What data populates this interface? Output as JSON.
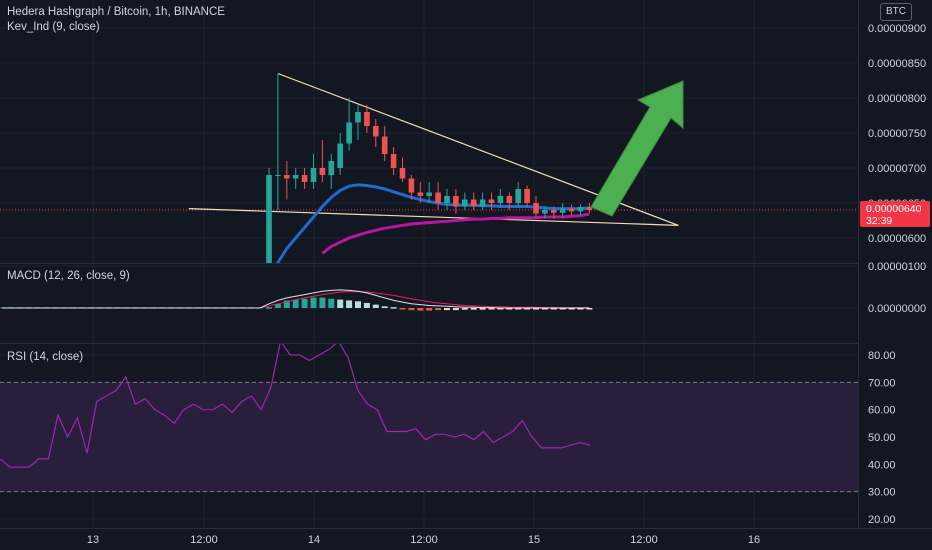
{
  "header": {
    "title": "Hedera Hashgraph / Bitcoin, 1h, BINANCE",
    "indicator": "Kev_Ind  (9, close)",
    "currency_badge": "BTC"
  },
  "price_tag": {
    "price": "0.00000640",
    "countdown": "32:39",
    "color": "#f23645"
  },
  "macd_legend": "MACD (12, 26, close, 9)",
  "rsi_legend": "RSI (14, close)",
  "colors": {
    "background": "#131722",
    "up": "#26a69a",
    "down": "#ef5350",
    "ema_fast": "#1e6ccf",
    "ema_slow": "#b5179e",
    "trendline": "#f5deb3",
    "arrow": "#4caf50",
    "rsi_line": "#9c27b0",
    "rsi_band": "#2a1e3d"
  },
  "chart_data": [
    {
      "type": "candlestick",
      "title": "Hedera Hashgraph / Bitcoin, 1h, BINANCE",
      "ylim": [
        5.75e-06,
        9.2e-06
      ],
      "y_ticks": [
        "0.00000900",
        "0.00000850",
        "0.00000800",
        "0.00000750",
        "0.00000700",
        "0.00000650",
        "0.00000600"
      ],
      "x_ticks": [
        "13",
        "12:00",
        "14",
        "12:00",
        "15",
        "12:00",
        "16"
      ],
      "current_price": 6.4e-06,
      "candles": [
        {
          "i": 0,
          "o": 5.6e-06,
          "h": 7e-06,
          "l": 5.6e-06,
          "c": 6.9e-06
        },
        {
          "i": 1,
          "o": 6.9e-06,
          "h": 8.35e-06,
          "l": 6.4e-06,
          "c": 6.9e-06
        },
        {
          "i": 2,
          "o": 6.9e-06,
          "h": 7.1e-06,
          "l": 6.55e-06,
          "c": 6.85e-06
        },
        {
          "i": 3,
          "o": 6.85e-06,
          "h": 7e-06,
          "l": 6.7e-06,
          "c": 6.9e-06
        },
        {
          "i": 4,
          "o": 6.9e-06,
          "h": 7e-06,
          "l": 6.7e-06,
          "c": 6.8e-06
        },
        {
          "i": 5,
          "o": 6.8e-06,
          "h": 7.2e-06,
          "l": 6.7e-06,
          "c": 7e-06
        },
        {
          "i": 6,
          "o": 7e-06,
          "h": 7.4e-06,
          "l": 6.8e-06,
          "c": 6.9e-06
        },
        {
          "i": 7,
          "o": 6.9e-06,
          "h": 7.2e-06,
          "l": 6.7e-06,
          "c": 7.1e-06
        },
        {
          "i": 8,
          "o": 7e-06,
          "h": 7.5e-06,
          "l": 6.9e-06,
          "c": 7.35e-06
        },
        {
          "i": 9,
          "o": 7.35e-06,
          "h": 8e-06,
          "l": 7.25e-06,
          "c": 7.65e-06
        },
        {
          "i": 10,
          "o": 7.65e-06,
          "h": 7.9e-06,
          "l": 7.4e-06,
          "c": 7.8e-06
        },
        {
          "i": 11,
          "o": 7.8e-06,
          "h": 7.9e-06,
          "l": 7.5e-06,
          "c": 7.6e-06
        },
        {
          "i": 12,
          "o": 7.6e-06,
          "h": 7.7e-06,
          "l": 7.3e-06,
          "c": 7.45e-06
        },
        {
          "i": 13,
          "o": 7.45e-06,
          "h": 7.6e-06,
          "l": 7.1e-06,
          "c": 7.2e-06
        },
        {
          "i": 14,
          "o": 7.2e-06,
          "h": 7.3e-06,
          "l": 6.9e-06,
          "c": 7e-06
        },
        {
          "i": 15,
          "o": 7e-06,
          "h": 7.15e-06,
          "l": 6.8e-06,
          "c": 6.85e-06
        },
        {
          "i": 16,
          "o": 6.85e-06,
          "h": 6.9e-06,
          "l": 6.55e-06,
          "c": 6.65e-06
        },
        {
          "i": 17,
          "o": 6.65e-06,
          "h": 6.8e-06,
          "l": 6.5e-06,
          "c": 6.6e-06
        },
        {
          "i": 18,
          "o": 6.6e-06,
          "h": 6.8e-06,
          "l": 6.5e-06,
          "c": 6.65e-06
        },
        {
          "i": 19,
          "o": 6.65e-06,
          "h": 6.8e-06,
          "l": 6.4e-06,
          "c": 6.5e-06
        },
        {
          "i": 20,
          "o": 6.5e-06,
          "h": 6.7e-06,
          "l": 6.4e-06,
          "c": 6.6e-06
        },
        {
          "i": 21,
          "o": 6.6e-06,
          "h": 6.7e-06,
          "l": 6.35e-06,
          "c": 6.45e-06
        },
        {
          "i": 22,
          "o": 6.45e-06,
          "h": 6.65e-06,
          "l": 6.4e-06,
          "c": 6.55e-06
        },
        {
          "i": 23,
          "o": 6.55e-06,
          "h": 6.65e-06,
          "l": 6.4e-06,
          "c": 6.45e-06
        },
        {
          "i": 24,
          "o": 6.45e-06,
          "h": 6.65e-06,
          "l": 6.4e-06,
          "c": 6.55e-06
        },
        {
          "i": 25,
          "o": 6.55e-06,
          "h": 6.65e-06,
          "l": 6.4e-06,
          "c": 6.5e-06
        },
        {
          "i": 26,
          "o": 6.5e-06,
          "h": 6.7e-06,
          "l": 6.45e-06,
          "c": 6.6e-06
        },
        {
          "i": 27,
          "o": 6.6e-06,
          "h": 6.65e-06,
          "l": 6.4e-06,
          "c": 6.5e-06
        },
        {
          "i": 28,
          "o": 6.5e-06,
          "h": 6.8e-06,
          "l": 6.45e-06,
          "c": 6.7e-06
        },
        {
          "i": 29,
          "o": 6.7e-06,
          "h": 6.75e-06,
          "l": 6.45e-06,
          "c": 6.5e-06
        },
        {
          "i": 30,
          "o": 6.5e-06,
          "h": 6.6e-06,
          "l": 6.3e-06,
          "c": 6.35e-06
        },
        {
          "i": 31,
          "o": 6.35e-06,
          "h": 6.45e-06,
          "l": 6.28e-06,
          "c": 6.4e-06
        },
        {
          "i": 32,
          "o": 6.4e-06,
          "h": 6.45e-06,
          "l": 6.28e-06,
          "c": 6.36e-06
        },
        {
          "i": 33,
          "o": 6.36e-06,
          "h": 6.5e-06,
          "l": 6.3e-06,
          "c": 6.42e-06
        },
        {
          "i": 34,
          "o": 6.42e-06,
          "h": 6.48e-06,
          "l": 6.32e-06,
          "c": 6.38e-06
        },
        {
          "i": 35,
          "o": 6.38e-06,
          "h": 6.48e-06,
          "l": 6.32e-06,
          "c": 6.44e-06
        },
        {
          "i": 36,
          "o": 6.44e-06,
          "h": 6.5e-06,
          "l": 6.36e-06,
          "c": 6.4e-06
        }
      ],
      "ema_fast": [
        5.4e-06,
        5.65e-06,
        5.85e-06,
        6e-06,
        6.15e-06,
        6.3e-06,
        6.45e-06,
        6.58e-06,
        6.68e-06,
        6.74e-06,
        6.76e-06,
        6.75e-06,
        6.73e-06,
        6.7e-06,
        6.66e-06,
        6.62e-06,
        6.58e-06,
        6.55e-06,
        6.52e-06,
        6.5e-06,
        6.48e-06,
        6.47e-06,
        6.47e-06,
        6.47e-06,
        6.46e-06,
        6.46e-06,
        6.45e-06,
        6.45e-06,
        6.45e-06,
        6.45e-06,
        6.44e-06,
        6.43e-06,
        6.42e-06,
        6.42e-06,
        6.42e-06,
        6.42e-06,
        6.43e-06
      ],
      "ema_slow": [
        null,
        null,
        null,
        null,
        null,
        null,
        5.78e-06,
        5.88e-06,
        5.94e-06,
        6e-06,
        6.04e-06,
        6.08e-06,
        6.11e-06,
        6.14e-06,
        6.16e-06,
        6.18e-06,
        6.2e-06,
        6.21e-06,
        6.22e-06,
        6.23e-06,
        6.24e-06,
        6.25e-06,
        6.26e-06,
        6.27e-06,
        6.27e-06,
        6.28e-06,
        6.28e-06,
        6.29e-06,
        6.29e-06,
        6.29e-06,
        6.29e-06,
        6.3e-06,
        6.3e-06,
        6.3e-06,
        6.31e-06,
        6.32e-06,
        6.34e-06
      ],
      "trendlines": [
        {
          "from": {
            "i": 1,
            "v": 8.35e-06
          },
          "to": {
            "i": 46,
            "v": 6.18e-06
          }
        },
        {
          "from": {
            "i": -9,
            "v": 6.42e-06
          },
          "to": {
            "i": 46,
            "v": 6.18e-06
          }
        }
      ]
    },
    {
      "type": "macd",
      "title": "MACD (12, 26, close, 9)",
      "ylim": [
        -3.5e-07,
        1.05e-06
      ],
      "y_ticks": [
        "0.00000100",
        "0.00000000"
      ],
      "hist": [
        2e-08,
        1e-07,
        1.8e-07,
        2e-07,
        2.2e-07,
        2.5e-07,
        2.5e-07,
        2.2e-07,
        2e-07,
        1.8e-07,
        1.6e-07,
        1.2e-07,
        8e-08,
        4e-08,
        2e-08,
        -2e-08,
        -5e-08,
        -6e-08,
        -6e-08,
        -5e-08,
        -5e-08,
        -5e-08,
        -4e-08,
        -4e-08,
        -4e-08,
        -3e-08,
        -3e-08,
        -3e-08,
        -2e-08,
        -3e-08,
        -3e-08,
        -3e-08,
        -2e-08,
        -2e-08,
        -2e-08,
        -2e-08,
        -1e-08
      ],
      "macd": [
        1e-07,
        1.8e-07,
        2.4e-07,
        2.8e-07,
        3.2e-07,
        3.6e-07,
        4e-07,
        4.2e-07,
        4.3e-07,
        4.2e-07,
        4e-07,
        3.6e-07,
        3e-07,
        2.4e-07,
        1.8e-07,
        1.4e-07,
        1e-07,
        8e-08,
        6e-08,
        5e-08,
        4e-08,
        3e-08,
        2e-08,
        2e-08,
        1e-08,
        1e-08,
        0.0,
        0.0,
        0.0,
        0.0,
        0.0,
        0.0,
        0.0,
        0.0,
        0.0,
        0.0,
        0.0
      ],
      "signal": [
        5e-08,
        1e-07,
        1.5e-07,
        2e-07,
        2.4e-07,
        2.8e-07,
        3.2e-07,
        3.5e-07,
        3.8e-07,
        3.9e-07,
        3.9e-07,
        3.8e-07,
        3.6e-07,
        3.3e-07,
        3e-07,
        2.6e-07,
        2.2e-07,
        1.8e-07,
        1.5e-07,
        1.2e-07,
        1e-07,
        8e-08,
        6e-08,
        5e-08,
        4e-08,
        3e-08,
        3e-08,
        2e-08,
        2e-08,
        2e-08,
        2e-08,
        1e-08,
        1e-08,
        1e-08,
        1e-08,
        1e-08,
        1e-08
      ]
    },
    {
      "type": "line",
      "title": "RSI (14, close)",
      "ylim": [
        17,
        85
      ],
      "y_ticks": [
        "80.00",
        "70.00",
        "60.00",
        "50.00",
        "40.00",
        "30.00",
        "20.00"
      ],
      "bands": [
        30,
        70
      ],
      "values": [
        42,
        39,
        39,
        39,
        42,
        42,
        58,
        50,
        57,
        44,
        63,
        65,
        67,
        72,
        62,
        64,
        60,
        58,
        55,
        60,
        62,
        60,
        60,
        62,
        59,
        63,
        65,
        60,
        68,
        85,
        80,
        80,
        78,
        80,
        82,
        85,
        79,
        67,
        62,
        60,
        52,
        52,
        52,
        53,
        49,
        51,
        51,
        50,
        51,
        49,
        52,
        48,
        50,
        52,
        56,
        50,
        46,
        46,
        46,
        47,
        48,
        47
      ]
    }
  ]
}
